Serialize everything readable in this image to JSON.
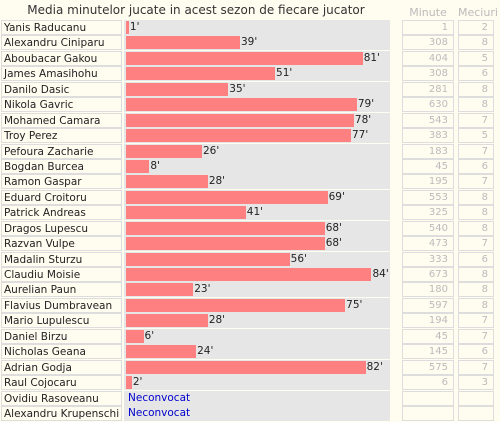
{
  "chart_data": {
    "type": "bar",
    "title": "Media minutelor jucate in acest sezon de fiecare jucator",
    "columns": [
      "Minute",
      "Meciuri"
    ],
    "xlim": [
      0,
      90
    ],
    "value_suffix": "'",
    "rows": [
      {
        "name": "Yanis Raducanu",
        "avg": 1,
        "minutes": 1,
        "matches": 2
      },
      {
        "name": "Alexandru Ciniparu",
        "avg": 39,
        "minutes": 308,
        "matches": 8
      },
      {
        "name": "Aboubacar Gakou",
        "avg": 81,
        "minutes": 404,
        "matches": 5
      },
      {
        "name": "James Amasihohu",
        "avg": 51,
        "minutes": 308,
        "matches": 6
      },
      {
        "name": "Danilo Dasic",
        "avg": 35,
        "minutes": 281,
        "matches": 8
      },
      {
        "name": "Nikola Gavric",
        "avg": 79,
        "minutes": 630,
        "matches": 8
      },
      {
        "name": "Mohamed Camara",
        "avg": 78,
        "minutes": 543,
        "matches": 7
      },
      {
        "name": "Troy Perez",
        "avg": 77,
        "minutes": 383,
        "matches": 5
      },
      {
        "name": "Pefoura Zacharie",
        "avg": 26,
        "minutes": 183,
        "matches": 7
      },
      {
        "name": "Bogdan Burcea",
        "avg": 8,
        "minutes": 45,
        "matches": 6
      },
      {
        "name": "Ramon Gaspar",
        "avg": 28,
        "minutes": 195,
        "matches": 7
      },
      {
        "name": "Eduard Croitoru",
        "avg": 69,
        "minutes": 553,
        "matches": 8
      },
      {
        "name": "Patrick Andreas",
        "avg": 41,
        "minutes": 325,
        "matches": 8
      },
      {
        "name": "Dragos Lupescu",
        "avg": 68,
        "minutes": 540,
        "matches": 8
      },
      {
        "name": "Razvan Vulpe",
        "avg": 68,
        "minutes": 473,
        "matches": 7
      },
      {
        "name": "Madalin Sturzu",
        "avg": 56,
        "minutes": 333,
        "matches": 6
      },
      {
        "name": "Claudiu Moisie",
        "avg": 84,
        "minutes": 673,
        "matches": 8
      },
      {
        "name": "Aurelian Paun",
        "avg": 23,
        "minutes": 180,
        "matches": 8
      },
      {
        "name": "Flavius Dumbravean",
        "avg": 75,
        "minutes": 597,
        "matches": 8
      },
      {
        "name": "Mario Lupulescu",
        "avg": 28,
        "minutes": 194,
        "matches": 7
      },
      {
        "name": "Daniel Birzu",
        "avg": 6,
        "minutes": 45,
        "matches": 7
      },
      {
        "name": "Nicholas Geana",
        "avg": 24,
        "minutes": 145,
        "matches": 6
      },
      {
        "name": "Adrian Godja",
        "avg": 82,
        "minutes": 575,
        "matches": 7
      },
      {
        "name": "Raul Cojocaru",
        "avg": 2,
        "minutes": 6,
        "matches": 3
      },
      {
        "name": "Ovidiu Rasoveanu",
        "status": "Neconvocat"
      },
      {
        "name": "Alexandru Krupenschi",
        "status": "Neconvocat"
      }
    ],
    "colors": {
      "bar": "#ff8080",
      "track": "#e6e6e6",
      "status": "#0000cc"
    }
  }
}
